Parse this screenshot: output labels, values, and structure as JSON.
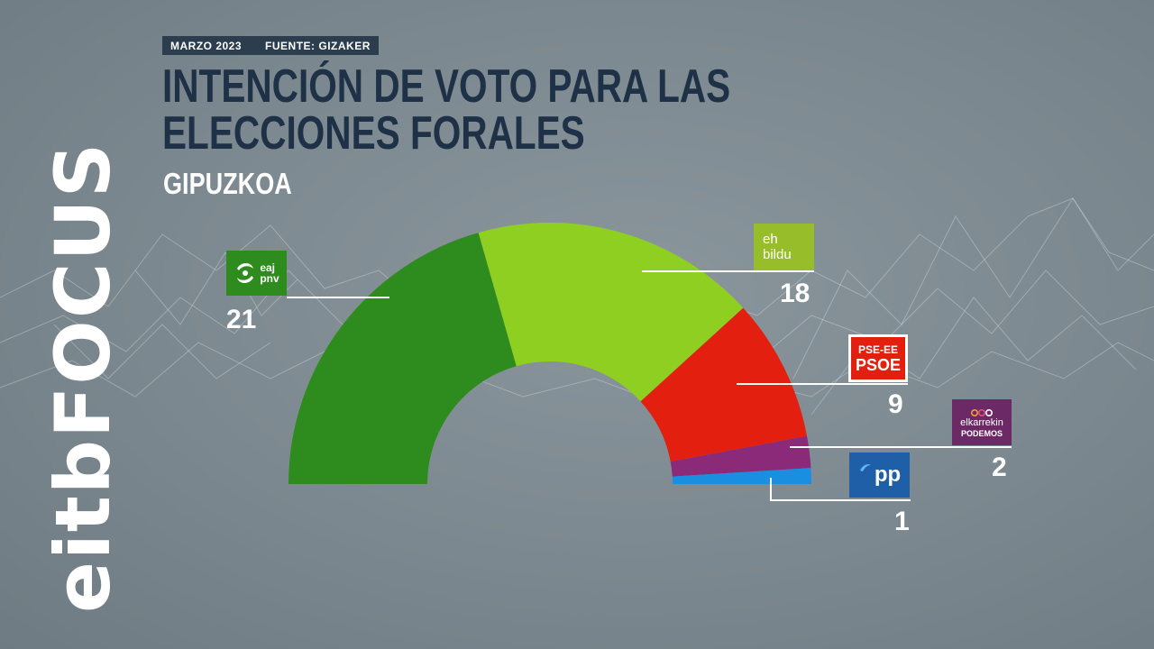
{
  "header": {
    "date": "MARZO 2023",
    "source": "FUENTE: GIZAKER",
    "title": "INTENCIÓN DE VOTO PARA LAS ELECCIONES FORALES",
    "subtitle": "GIPUZKOA"
  },
  "brand": {
    "name": "eitbFOCUS"
  },
  "colors": {
    "title": "#1f3146",
    "meta_bar": "#2c3d4e",
    "pnv": "#2e8b1d",
    "bildu": "#8fcf22",
    "psoe": "#e3200f",
    "podemos": "#8a2a78",
    "pp": "#1a8ee0"
  },
  "logos": {
    "pnv": {
      "line1": "eaj",
      "line2": "pnv",
      "icon": "pnv-swirl-icon"
    },
    "bildu": {
      "line1": "eh",
      "line2": "bildu"
    },
    "psoe": {
      "line1": "PSE-EE",
      "line2": "PSOE"
    },
    "podemos": {
      "line1": "elkarrekin",
      "line2": "PODEMOS",
      "icon": "podemos-circles-icon"
    },
    "pp": {
      "line1": "pp",
      "icon": "pp-bird-icon"
    }
  },
  "chart_data": {
    "type": "pie",
    "variant": "semicircle-parliament",
    "categories": [
      "EAJ-PNV",
      "EH Bildu",
      "PSE-EE PSOE",
      "Elkarrekin Podemos",
      "PP"
    ],
    "values": [
      21,
      18,
      9,
      2,
      1
    ],
    "value_labels": [
      "21",
      "18",
      "9",
      "2",
      "1"
    ],
    "colors": [
      "#2e8b1d",
      "#8fcf22",
      "#e3200f",
      "#8a2a78",
      "#1a8ee0"
    ]
  }
}
